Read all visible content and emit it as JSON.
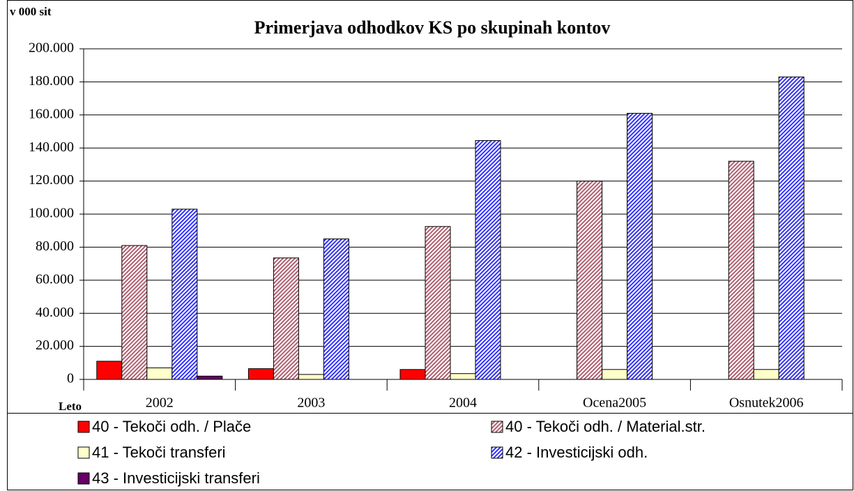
{
  "chart_data": {
    "type": "bar",
    "title": "Primerjava odhodkov KS po skupinah kontov",
    "y_axis_label": "v 000 sit",
    "x_axis_label": "Leto",
    "categories": [
      "2002",
      "2003",
      "2004",
      "Ocena2005",
      "Osnutek2006"
    ],
    "series": [
      {
        "name": "40 - Tekoči odh. / Plače",
        "color": "#ff0000",
        "values": [
          11000,
          6500,
          6000,
          null,
          null
        ]
      },
      {
        "name": "40 - Tekoči odh. / Material.str.",
        "color": "#b06070",
        "pattern": "hatch",
        "values": [
          81000,
          73500,
          92500,
          120000,
          132000
        ]
      },
      {
        "name": "41 - Tekoči transferi",
        "color": "#ffffcc",
        "values": [
          7000,
          3000,
          3500,
          6000,
          6000
        ]
      },
      {
        "name": "42 - Investicijski odh.",
        "color": "#3333ff",
        "pattern": "hatch",
        "values": [
          103000,
          85000,
          144500,
          161000,
          183000
        ]
      },
      {
        "name": "43 - Investicijski transferi",
        "color": "#660066",
        "values": [
          2000,
          null,
          null,
          null,
          null
        ]
      }
    ],
    "ylim": [
      0,
      200000
    ],
    "yticks": [
      0,
      {
        "value": 20000,
        "label": "20.000"
      },
      {
        "value": 40000,
        "label": "40.000"
      },
      {
        "value": 60000,
        "label": "60.000"
      },
      {
        "value": 80000,
        "label": "80.000"
      },
      {
        "value": 100000,
        "label": "100.000"
      },
      {
        "value": 120000,
        "label": "120.000"
      },
      {
        "value": 140000,
        "label": "140.000"
      },
      {
        "value": 160000,
        "label": "160.000"
      },
      {
        "value": 180000,
        "label": "180.000"
      },
      {
        "value": 200000,
        "label": "200.000"
      }
    ],
    "grid": true
  }
}
